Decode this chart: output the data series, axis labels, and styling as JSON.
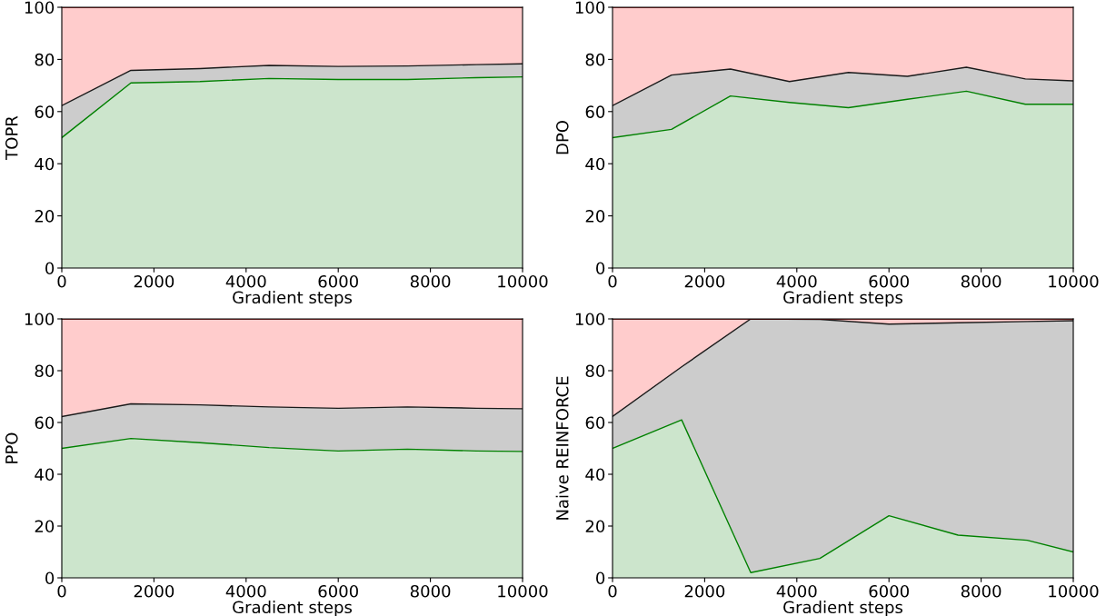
{
  "chart_data": [
    {
      "type": "area",
      "stacked": true,
      "xlabel": "Gradient steps",
      "ylabel": "TOPR",
      "x": [
        0,
        1500,
        3000,
        4500,
        6000,
        7500,
        9000,
        10000
      ],
      "xlim": [
        0,
        10000
      ],
      "xticks": [
        0,
        2000,
        4000,
        6000,
        8000,
        10000
      ],
      "ylim": [
        0,
        100
      ],
      "yticks": [
        0,
        20,
        40,
        60,
        80,
        100
      ],
      "grid": false,
      "series": [
        {
          "color": "#cce5cc",
          "values": [
            50,
            71,
            71.5,
            72.7,
            72.3,
            72.3,
            73,
            73.3
          ]
        },
        {
          "color": "#cccccc",
          "values": [
            12.3,
            4.8,
            5,
            5,
            5,
            5.2,
            5,
            5
          ]
        },
        {
          "color": "#ffcccc",
          "values": [
            37.7,
            24.2,
            23.5,
            22.3,
            22.7,
            22.5,
            22,
            21.7
          ]
        }
      ]
    },
    {
      "type": "area",
      "stacked": true,
      "xlabel": "Gradient steps",
      "ylabel": "DPO",
      "x": [
        0,
        1280,
        2560,
        3840,
        5120,
        6400,
        7680,
        8960,
        10000
      ],
      "xlim": [
        0,
        10000
      ],
      "xticks": [
        0,
        2000,
        4000,
        6000,
        8000,
        10000
      ],
      "ylim": [
        0,
        100
      ],
      "yticks": [
        0,
        20,
        40,
        60,
        80,
        100
      ],
      "grid": false,
      "series": [
        {
          "color": "#cce5cc",
          "values": [
            50,
            53.2,
            66,
            63.5,
            61.5,
            64.7,
            67.8,
            62.8,
            62.8
          ]
        },
        {
          "color": "#cccccc",
          "values": [
            12.3,
            20.8,
            10.3,
            8,
            13.5,
            8.8,
            9.2,
            9.7,
            9
          ]
        },
        {
          "color": "#ffcccc",
          "values": [
            37.7,
            26,
            23.7,
            28.5,
            25,
            26.5,
            23,
            27.5,
            28.2
          ]
        }
      ]
    },
    {
      "type": "area",
      "stacked": true,
      "xlabel": "Gradient steps",
      "ylabel": "PPO",
      "x": [
        0,
        1500,
        3000,
        4500,
        6000,
        7500,
        9000,
        10000
      ],
      "xlim": [
        0,
        10000
      ],
      "xticks": [
        0,
        2000,
        4000,
        6000,
        8000,
        10000
      ],
      "ylim": [
        0,
        100
      ],
      "yticks": [
        0,
        20,
        40,
        60,
        80,
        100
      ],
      "grid": false,
      "series": [
        {
          "color": "#cce5cc",
          "values": [
            50,
            53.8,
            52.2,
            50.3,
            49,
            49.7,
            49,
            48.8
          ]
        },
        {
          "color": "#cccccc",
          "values": [
            12.3,
            13.4,
            14.6,
            15.7,
            16.5,
            16.3,
            16.5,
            16.5
          ]
        },
        {
          "color": "#ffcccc",
          "values": [
            37.7,
            32.8,
            33.2,
            34,
            34.5,
            34,
            34.5,
            34.7
          ]
        }
      ]
    },
    {
      "type": "area",
      "stacked": true,
      "xlabel": "Gradient steps",
      "ylabel": "Naive REINFORCE",
      "x": [
        0,
        1500,
        3000,
        4500,
        6000,
        7500,
        9000,
        10000
      ],
      "xlim": [
        0,
        10000
      ],
      "xticks": [
        0,
        2000,
        4000,
        6000,
        8000,
        10000
      ],
      "ylim": [
        0,
        100
      ],
      "yticks": [
        0,
        20,
        40,
        60,
        80,
        100
      ],
      "grid": false,
      "series": [
        {
          "color": "#cce5cc",
          "values": [
            50,
            61,
            2,
            7.5,
            24,
            16.5,
            14.5,
            10
          ]
        },
        {
          "color": "#cccccc",
          "values": [
            12.3,
            20.5,
            98,
            92.3,
            74,
            82,
            84.5,
            89.3
          ]
        },
        {
          "color": "#ffcccc",
          "values": [
            37.7,
            18.5,
            0,
            0.2,
            2,
            1.5,
            1,
            0.7
          ]
        }
      ]
    }
  ]
}
